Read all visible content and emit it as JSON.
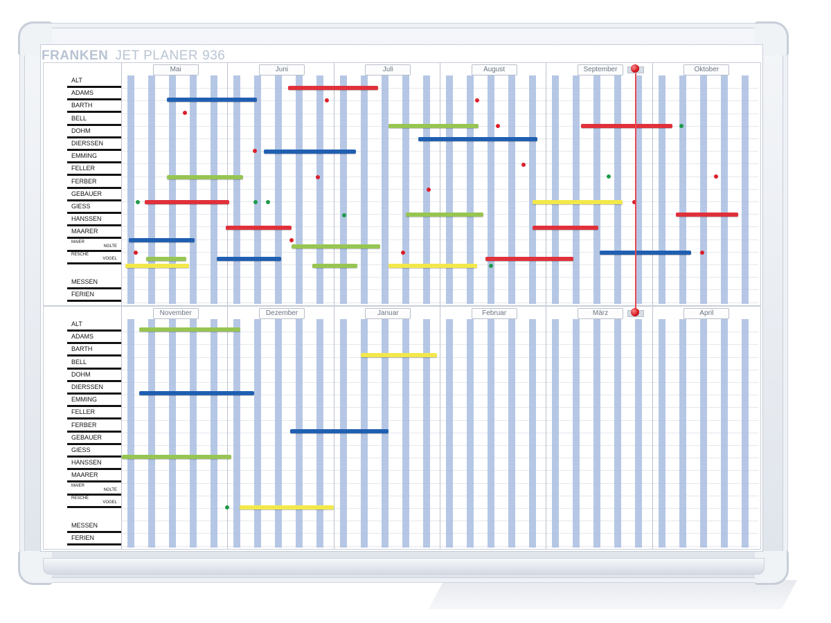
{
  "brand": {
    "name": "FRANKEN",
    "product": "JET PLANER",
    "model": "936"
  },
  "sections": [
    {
      "id": "top",
      "months": [
        "Mai",
        "Juni",
        "Juli",
        "August",
        "September",
        "Oktober"
      ]
    },
    {
      "id": "bottom",
      "months": [
        "November",
        "Dezember",
        "Januar",
        "Februar",
        "März",
        "April"
      ]
    }
  ],
  "names": [
    "ALT",
    "ADAMS",
    "BARTH",
    "BELL",
    "DOHM",
    "DIERSSEN",
    "EMMING",
    "FELLER",
    "FERBER",
    "GEBAUER",
    "GIESS",
    "HANSSEN",
    "MAARER"
  ],
  "double_names": [
    {
      "first": "MAIER",
      "second": "NOLTE"
    },
    {
      "first": "RESCHE",
      "second": "VOGEL"
    }
  ],
  "extra_names": [
    "MESSEN",
    "FERIEN"
  ],
  "colors": {
    "blue_stripe": "#a9bde0",
    "red": "#e0313b",
    "blue": "#1f5fb1",
    "green": "#97c552",
    "yellow": "#f3e84a",
    "pin": "#d1131c",
    "dot_red": "#d9202a",
    "dot_green": "#1f9a4a",
    "brand_text": "#b8c3d3"
  }
}
